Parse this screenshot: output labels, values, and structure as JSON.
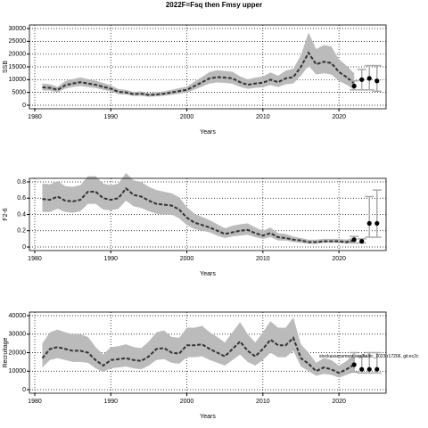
{
  "title": "2022F=Fsq then Fmsy upper",
  "chart_data": [
    {
      "type": "line",
      "ylabel": "SSB",
      "xlabel": "Years",
      "xlim": [
        1979.3,
        2026.2
      ],
      "xticks": [
        1980,
        1990,
        2000,
        2010,
        2020
      ],
      "ylim": [
        -1400,
        31400
      ],
      "yticks": [
        0,
        5000,
        10000,
        15000,
        20000,
        25000,
        30000
      ],
      "grid": true,
      "band_color": "#bbbbbb",
      "line_color": "#333333",
      "point_color": "#000000",
      "x": [
        1981,
        1982,
        1983,
        1984,
        1985,
        1986,
        1987,
        1988,
        1989,
        1990,
        1991,
        1992,
        1993,
        1994,
        1995,
        1996,
        1997,
        1998,
        1999,
        2000,
        2001,
        2002,
        2003,
        2004,
        2005,
        2006,
        2007,
        2008,
        2009,
        2010,
        2011,
        2012,
        2013,
        2014,
        2015,
        2016,
        2017,
        2018,
        2019,
        2020,
        2021,
        2022
      ],
      "values": [
        7000,
        6800,
        6000,
        7800,
        8500,
        9000,
        8500,
        8000,
        7200,
        6500,
        5200,
        5000,
        4300,
        4500,
        4000,
        4200,
        4500,
        5000,
        5500,
        6000,
        7500,
        9000,
        10500,
        11000,
        10800,
        10500,
        9000,
        8000,
        8500,
        8800,
        10000,
        9000,
        10500,
        11000,
        15000,
        20500,
        16000,
        17000,
        16500,
        13000,
        11000,
        8500
      ],
      "low": [
        5800,
        5700,
        5000,
        6500,
        7100,
        7500,
        7100,
        6700,
        6000,
        5400,
        4300,
        4200,
        3600,
        3700,
        3300,
        3500,
        3700,
        4100,
        4500,
        4900,
        6100,
        7300,
        8500,
        8900,
        8700,
        8400,
        7200,
        6400,
        6800,
        7000,
        7900,
        7100,
        8200,
        8500,
        11500,
        15500,
        12000,
        12500,
        12000,
        9500,
        8000,
        6000
      ],
      "high": [
        8500,
        8200,
        7200,
        9400,
        10200,
        10900,
        10200,
        9600,
        8700,
        7800,
        6300,
        6000,
        5200,
        5400,
        4800,
        5100,
        5400,
        6000,
        6700,
        7300,
        9200,
        11100,
        13000,
        13700,
        13400,
        13100,
        11300,
        10100,
        10800,
        11200,
        12800,
        11500,
        13500,
        14300,
        19600,
        28500,
        22000,
        23500,
        23000,
        18000,
        15500,
        12500
      ],
      "forecast": {
        "x": [
          2022,
          2023,
          2024,
          2025
        ],
        "values": [
          7500,
          10000,
          10500,
          9500
        ],
        "low": [
          6000,
          6000,
          6000,
          5500
        ],
        "high": [
          9500,
          14000,
          15500,
          15500
        ]
      }
    },
    {
      "type": "line",
      "ylabel": "F2-6",
      "xlabel": "Years",
      "xlim": [
        1979.3,
        2026.2
      ],
      "xticks": [
        1980,
        1990,
        2000,
        2010,
        2020
      ],
      "ylim": [
        -0.044,
        0.844
      ],
      "yticks": [
        0.0,
        0.2,
        0.4,
        0.6,
        0.8
      ],
      "grid": true,
      "band_color": "#bbbbbb",
      "line_color": "#333333",
      "point_color": "#000000",
      "x": [
        1981,
        1982,
        1983,
        1984,
        1985,
        1986,
        1987,
        1988,
        1989,
        1990,
        1991,
        1992,
        1993,
        1994,
        1995,
        1996,
        1997,
        1998,
        1999,
        2000,
        2001,
        2002,
        2003,
        2004,
        2005,
        2006,
        2007,
        2008,
        2009,
        2010,
        2011,
        2012,
        2013,
        2014,
        2015,
        2016,
        2017,
        2018,
        2019,
        2020,
        2021,
        2022
      ],
      "values": [
        0.59,
        0.58,
        0.62,
        0.57,
        0.56,
        0.58,
        0.68,
        0.68,
        0.6,
        0.58,
        0.6,
        0.72,
        0.64,
        0.62,
        0.57,
        0.53,
        0.52,
        0.51,
        0.46,
        0.36,
        0.3,
        0.27,
        0.24,
        0.2,
        0.16,
        0.18,
        0.2,
        0.21,
        0.17,
        0.14,
        0.17,
        0.12,
        0.11,
        0.09,
        0.08,
        0.06,
        0.06,
        0.07,
        0.07,
        0.07,
        0.06,
        0.08
      ],
      "low": [
        0.43,
        0.43,
        0.47,
        0.43,
        0.42,
        0.44,
        0.53,
        0.53,
        0.46,
        0.45,
        0.47,
        0.57,
        0.5,
        0.48,
        0.44,
        0.41,
        0.4,
        0.4,
        0.35,
        0.27,
        0.22,
        0.2,
        0.18,
        0.14,
        0.11,
        0.13,
        0.14,
        0.15,
        0.12,
        0.1,
        0.12,
        0.08,
        0.08,
        0.06,
        0.05,
        0.04,
        0.04,
        0.05,
        0.05,
        0.05,
        0.04,
        0.05
      ],
      "high": [
        0.78,
        0.77,
        0.81,
        0.75,
        0.74,
        0.76,
        0.87,
        0.87,
        0.78,
        0.76,
        0.78,
        0.91,
        0.82,
        0.8,
        0.74,
        0.7,
        0.68,
        0.66,
        0.61,
        0.49,
        0.41,
        0.37,
        0.33,
        0.28,
        0.23,
        0.26,
        0.28,
        0.29,
        0.24,
        0.2,
        0.24,
        0.17,
        0.16,
        0.13,
        0.11,
        0.09,
        0.09,
        0.1,
        0.1,
        0.1,
        0.09,
        0.12
      ],
      "forecast": {
        "x": [
          2022,
          2023,
          2024,
          2025
        ],
        "values": [
          0.09,
          0.07,
          0.29,
          0.29
        ],
        "low": [
          0.05,
          0.05,
          0.12,
          0.12
        ],
        "high": [
          0.13,
          0.1,
          0.62,
          0.7
        ]
      }
    },
    {
      "type": "line",
      "ylabel": "Recruitage",
      "xlabel": "Years",
      "annotation": "stockassessment.org/Baltic_2023 r17206, git:ec2c",
      "xlim": [
        1979.3,
        2026.2
      ],
      "xticks": [
        1980,
        1990,
        2000,
        2010,
        2020
      ],
      "ylim": [
        -1930,
        41930
      ],
      "yticks": [
        0,
        10000,
        20000,
        30000,
        40000
      ],
      "grid": true,
      "band_color": "#bbbbbb",
      "line_color": "#333333",
      "point_color": "#000000",
      "x": [
        1981,
        1982,
        1983,
        1984,
        1985,
        1986,
        1987,
        1988,
        1989,
        1990,
        1991,
        1992,
        1993,
        1994,
        1995,
        1996,
        1997,
        1998,
        1999,
        2000,
        2001,
        2002,
        2003,
        2004,
        2005,
        2006,
        2007,
        2008,
        2009,
        2010,
        2011,
        2012,
        2013,
        2014,
        2015,
        2016,
        2017,
        2018,
        2019,
        2020,
        2021,
        2022
      ],
      "values": [
        17000,
        22000,
        23000,
        22000,
        21000,
        21000,
        20000,
        16000,
        13000,
        16000,
        16500,
        17000,
        16000,
        15500,
        18000,
        22000,
        22500,
        20000,
        19500,
        24000,
        24000,
        24500,
        22000,
        20000,
        18000,
        22000,
        26000,
        21000,
        18000,
        22000,
        27000,
        24000,
        24000,
        28000,
        17000,
        14000,
        10000,
        12000,
        11000,
        9000,
        11000,
        13500
      ],
      "low": [
        12000,
        16000,
        17000,
        16000,
        15000,
        15000,
        14500,
        11500,
        9500,
        11500,
        12000,
        12500,
        11500,
        11000,
        13000,
        16000,
        16500,
        14500,
        14000,
        17500,
        17500,
        18000,
        16000,
        14500,
        13000,
        16000,
        19000,
        15000,
        13000,
        16000,
        20000,
        17500,
        17500,
        21000,
        12500,
        10000,
        7500,
        8500,
        8000,
        6500,
        8000,
        9500
      ],
      "high": [
        25000,
        31000,
        32500,
        31000,
        30000,
        30000,
        28500,
        23000,
        19000,
        23000,
        23500,
        24500,
        23000,
        22500,
        26000,
        31000,
        32000,
        28500,
        28000,
        33500,
        33500,
        34500,
        31000,
        28500,
        25500,
        31000,
        36500,
        30000,
        25500,
        31000,
        37000,
        33500,
        33500,
        39000,
        24500,
        20000,
        14500,
        17000,
        16000,
        13000,
        15500,
        19500
      ],
      "forecast": {
        "x": [
          2022,
          2023,
          2024,
          2025
        ],
        "values": [
          13500,
          11000,
          11000,
          11000
        ],
        "low": [
          9500,
          9000,
          9000,
          9000
        ],
        "high": [
          20000,
          18000,
          20000,
          20000
        ]
      }
    }
  ]
}
